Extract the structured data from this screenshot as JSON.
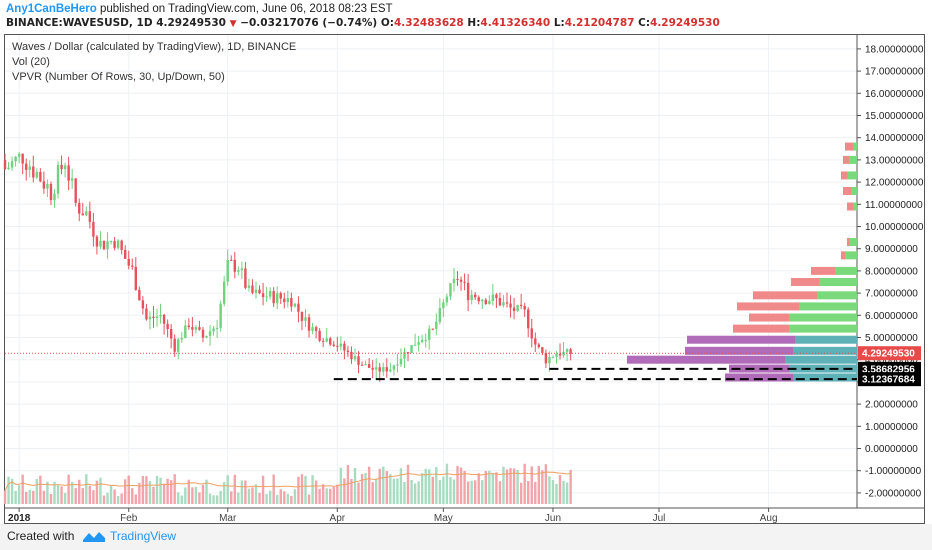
{
  "header": {
    "author": "Any1CanBeHero",
    "published": "published on TradingView.com, June 06, 2018 08:23 EST",
    "symbol": "BINANCE:WAVESUSD, 1D",
    "last": "4.29249530",
    "change_arrow": "▼",
    "change": "−0.03217076 (−0.74%)",
    "o_label": "O:",
    "o": "4.32483628",
    "h_label": "H:",
    "h": "4.41326340",
    "l_label": "L:",
    "l": "4.21204787",
    "c_label": "C:",
    "c": "4.29249530"
  },
  "legend": {
    "line1": "Waves / Dollar (calculated by TradingView), 1D, BINANCE",
    "line2": "Vol (20)",
    "line3": "VPVR (Number Of Rows, 30, Up/Down, 50)"
  },
  "footer": {
    "created": "Created with",
    "brand": "TradingView"
  },
  "colors": {
    "up": "#6fd27c",
    "down": "#e8505b",
    "vol_up": "#a8dcc0",
    "vol_down": "#f2a4aa",
    "ma": "#f0a060",
    "price_line": "#e84a4a",
    "support": "#000000",
    "vpvr_up": "#7ad97a",
    "vpvr_down": "#f08a8a",
    "vpvr_va_up": "#5fb1b8",
    "vpvr_va_down": "#b06cb8"
  },
  "chart_data": {
    "type": "candlestick",
    "title": "Waves / Dollar (calculated by TradingView), 1D, BINANCE",
    "y_axis_labels": [
      "18.00000000",
      "17.00000000",
      "16.00000000",
      "15.00000000",
      "14.00000000",
      "13.00000000",
      "12.00000000",
      "11.00000000",
      "10.00000000",
      "9.00000000",
      "8.00000000",
      "7.00000000",
      "6.00000000",
      "5.00000000",
      "4.00000000",
      "3.00000000",
      "2.00000000",
      "1.00000000",
      "0.00000000",
      "-1.00000000",
      "-2.00000000"
    ],
    "ylim": [
      -2.6,
      18.6
    ],
    "x_axis_labels": [
      {
        "label": "2018",
        "date": "2018-01-01",
        "bold": true
      },
      {
        "label": "Feb",
        "date": "2018-02-01"
      },
      {
        "label": "Mar",
        "date": "2018-03-01"
      },
      {
        "label": "Apr",
        "date": "2018-04-01"
      },
      {
        "label": "May",
        "date": "2018-05-01"
      },
      {
        "label": "Jun",
        "date": "2018-06-01"
      },
      {
        "label": "Jul",
        "date": "2018-07-01"
      },
      {
        "label": "Aug",
        "date": "2018-08-01"
      }
    ],
    "x_range": [
      "2017-12-28",
      "2018-08-26"
    ],
    "current_price": "4.29249530",
    "support_levels": [
      {
        "value": 3.58682956,
        "label": "3.58682956",
        "from": "2018-05-31",
        "to": "2018-08-26"
      },
      {
        "value": 3.12367684,
        "label": "3.12367684",
        "from": "2018-03-31",
        "to": "2018-08-26"
      }
    ],
    "close_series": [
      {
        "date": "2017-12-28",
        "close": 12.6
      },
      {
        "date": "2018-01-02",
        "close": 13.2
      },
      {
        "date": "2018-01-06",
        "close": 12.4
      },
      {
        "date": "2018-01-10",
        "close": 11.6
      },
      {
        "date": "2018-01-14",
        "close": 13.0
      },
      {
        "date": "2018-01-17",
        "close": 11.0
      },
      {
        "date": "2018-01-20",
        "close": 10.6
      },
      {
        "date": "2018-01-24",
        "close": 9.2
      },
      {
        "date": "2018-01-28",
        "close": 9.4
      },
      {
        "date": "2018-02-02",
        "close": 8.0
      },
      {
        "date": "2018-02-06",
        "close": 5.8
      },
      {
        "date": "2018-02-10",
        "close": 6.0
      },
      {
        "date": "2018-02-14",
        "close": 4.6
      },
      {
        "date": "2018-02-18",
        "close": 5.6
      },
      {
        "date": "2018-02-22",
        "close": 5.0
      },
      {
        "date": "2018-02-26",
        "close": 5.6
      },
      {
        "date": "2018-03-01",
        "close": 8.3
      },
      {
        "date": "2018-03-04",
        "close": 8.2
      },
      {
        "date": "2018-03-07",
        "close": 7.0
      },
      {
        "date": "2018-03-11",
        "close": 6.9
      },
      {
        "date": "2018-03-15",
        "close": 6.8
      },
      {
        "date": "2018-03-19",
        "close": 6.7
      },
      {
        "date": "2018-03-23",
        "close": 5.7
      },
      {
        "date": "2018-03-27",
        "close": 5.1
      },
      {
        "date": "2018-03-31",
        "close": 4.8
      },
      {
        "date": "2018-04-04",
        "close": 4.3
      },
      {
        "date": "2018-04-08",
        "close": 3.8
      },
      {
        "date": "2018-04-12",
        "close": 3.5
      },
      {
        "date": "2018-04-16",
        "close": 3.6
      },
      {
        "date": "2018-04-20",
        "close": 4.3
      },
      {
        "date": "2018-04-24",
        "close": 4.9
      },
      {
        "date": "2018-04-28",
        "close": 5.3
      },
      {
        "date": "2018-05-02",
        "close": 6.9
      },
      {
        "date": "2018-05-05",
        "close": 7.7
      },
      {
        "date": "2018-05-08",
        "close": 7.0
      },
      {
        "date": "2018-05-12",
        "close": 6.8
      },
      {
        "date": "2018-05-16",
        "close": 6.7
      },
      {
        "date": "2018-05-20",
        "close": 6.3
      },
      {
        "date": "2018-05-24",
        "close": 6.1
      },
      {
        "date": "2018-05-27",
        "close": 4.7
      },
      {
        "date": "2018-05-30",
        "close": 4.0
      },
      {
        "date": "2018-06-02",
        "close": 4.3
      },
      {
        "date": "2018-06-06",
        "close": 4.29
      }
    ]
  }
}
